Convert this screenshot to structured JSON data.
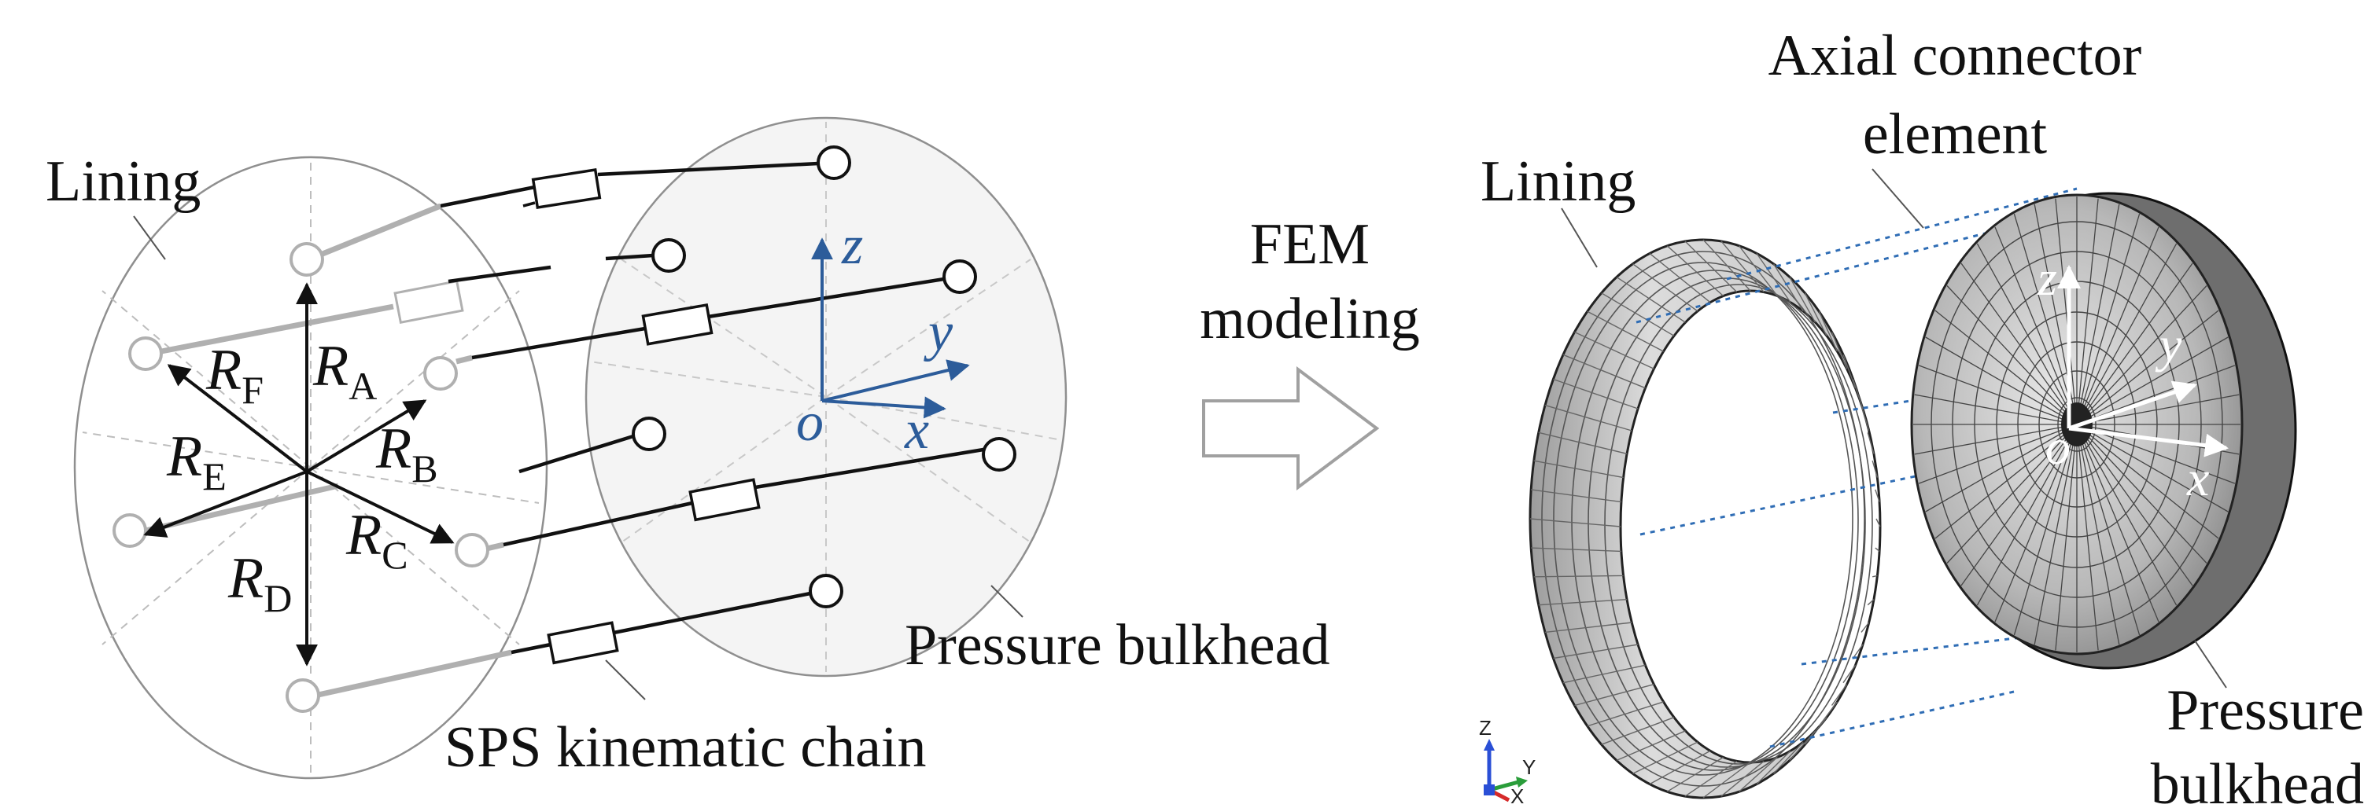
{
  "left_diagram": {
    "lining_label": "Lining",
    "pressure_bulkhead_label": "Pressure bulkhead",
    "sps_chain_label": "SPS kinematic chain",
    "force_labels": [
      {
        "base": "R",
        "sub": "A"
      },
      {
        "base": "R",
        "sub": "B"
      },
      {
        "base": "R",
        "sub": "C"
      },
      {
        "base": "R",
        "sub": "D"
      },
      {
        "base": "R",
        "sub": "E"
      },
      {
        "base": "R",
        "sub": "F"
      }
    ],
    "axes": {
      "z": "z",
      "y": "y",
      "x": "x",
      "origin": "o"
    }
  },
  "middle": {
    "line1": "FEM",
    "line2": "modeling"
  },
  "right_model": {
    "axial_connector_line1": "Axial connector",
    "axial_connector_line2": "element",
    "lining_label": "Lining",
    "pressure_line1": "Pressure",
    "pressure_line2": "bulkhead",
    "model_axes": {
      "z": "z",
      "y": "y",
      "x": "x",
      "origin": "o"
    },
    "triad": {
      "z": "Z",
      "y": "Y",
      "x": "X"
    }
  },
  "colors": {
    "axis_blue": "#2c5c9a",
    "connector_blue": "#2f6db5",
    "mesh_gray": "#9a9a9a",
    "triad_red": "#d62a2a",
    "triad_green": "#2a9d3a",
    "triad_blue": "#2a4fd6"
  }
}
